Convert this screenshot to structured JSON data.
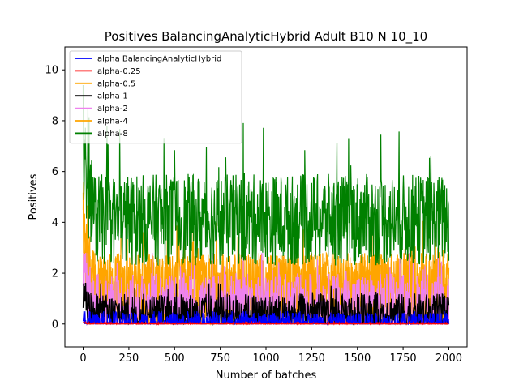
{
  "chart_data": {
    "type": "line",
    "title": "Positives BalancingAnalyticHybrid Adult B10 N 10_10",
    "xlabel": "Number of batches",
    "ylabel": "Positives",
    "xlim": [
      -100,
      2100
    ],
    "ylim": [
      -0.9,
      10.9
    ],
    "xticks": [
      0,
      250,
      500,
      750,
      1000,
      1250,
      1500,
      1750,
      2000
    ],
    "yticks": [
      0,
      2,
      4,
      6,
      8,
      10
    ],
    "legend_placement": "top-left",
    "grid": false,
    "x_range": [
      0,
      2000
    ],
    "series": [
      {
        "name": "alpha BalancingAnalyticHybrid",
        "color": "#0000ff",
        "mean": 0.05,
        "amp": 0.4,
        "max": 0.5
      },
      {
        "name": "alpha-0.25",
        "color": "#ff0000",
        "mean": 0.0,
        "amp": 0.05,
        "max": 0.08
      },
      {
        "name": "alpha-0.5",
        "color": "#ffa500",
        "mean": 1.3,
        "amp": 1.5,
        "max": 5.6
      },
      {
        "name": "alpha-1",
        "color": "#000000",
        "mean": 0.4,
        "amp": 0.8,
        "max": 1.6
      },
      {
        "name": "alpha-2",
        "color": "#ee82ee",
        "mean": 0.8,
        "amp": 1.2,
        "max": 2.8
      },
      {
        "name": "alpha-4",
        "color": "#ffa500",
        "mean": 1.3,
        "amp": 1.5,
        "max": 5.6
      },
      {
        "name": "alpha-8",
        "color": "#008000",
        "mean": 4.1,
        "amp": 1.8,
        "max": 9.4
      }
    ]
  }
}
